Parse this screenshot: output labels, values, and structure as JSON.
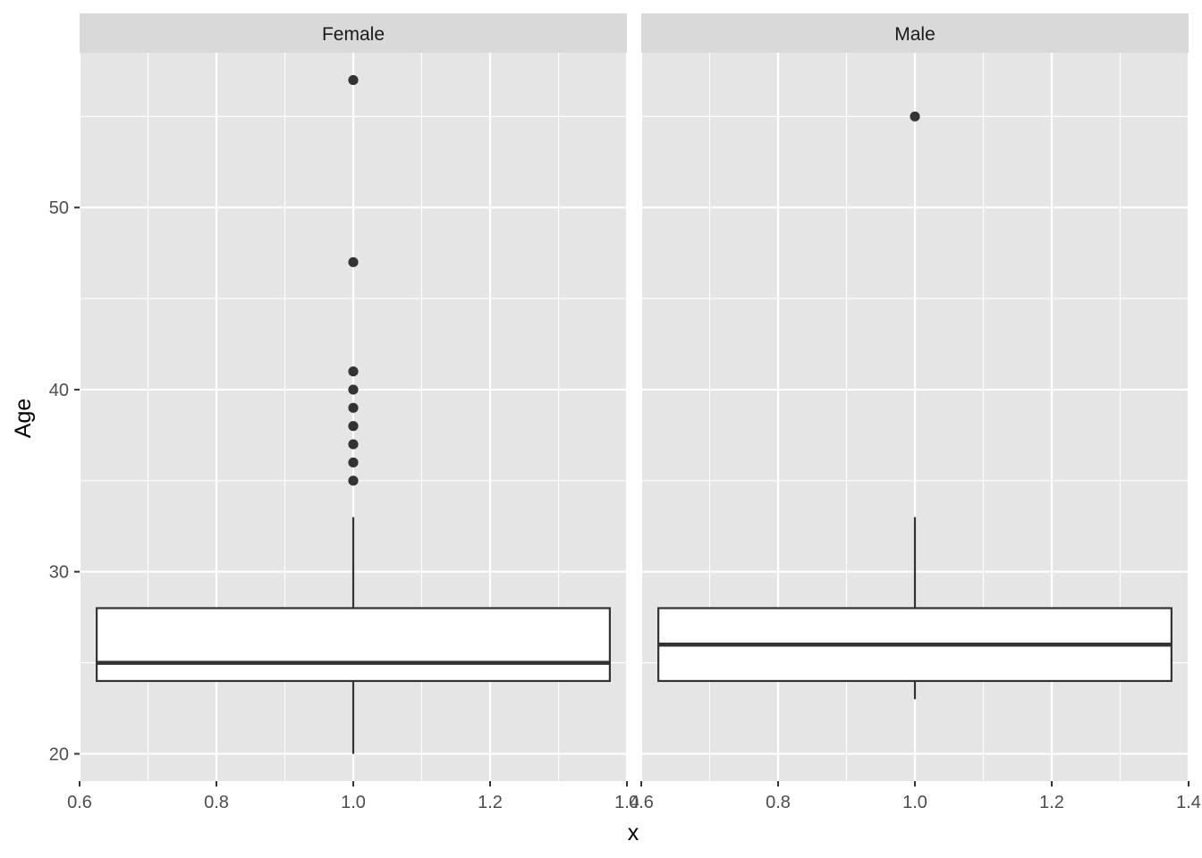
{
  "chart_data": {
    "type": "boxplot",
    "xlabel": "x",
    "ylabel": "Age",
    "xlim": [
      0.6,
      1.4
    ],
    "ylim": [
      18.5,
      58.5
    ],
    "x_ticks": [
      "0.6",
      "0.8",
      "1.0",
      "1.2",
      "1.4"
    ],
    "y_ticks": [
      "20",
      "30",
      "40",
      "50"
    ],
    "grid": true,
    "colors": {
      "panel_bg": "#e5e5e5",
      "strip_bg": "#d9d9d9",
      "grid": "#ffffff",
      "box_fill": "#ffffff",
      "box_line": "#333333",
      "point": "#333333"
    },
    "facets": [
      {
        "label": "Female",
        "x": 1.0,
        "lower_whisker": 20,
        "q1": 24,
        "median": 25,
        "q3": 28,
        "upper_whisker": 33,
        "outliers": [
          35,
          36,
          37,
          38,
          39,
          40,
          41,
          47,
          57
        ]
      },
      {
        "label": "Male",
        "x": 1.0,
        "lower_whisker": 23,
        "q1": 24,
        "median": 26,
        "q3": 28,
        "upper_whisker": 33,
        "outliers": [
          55
        ]
      }
    ]
  }
}
